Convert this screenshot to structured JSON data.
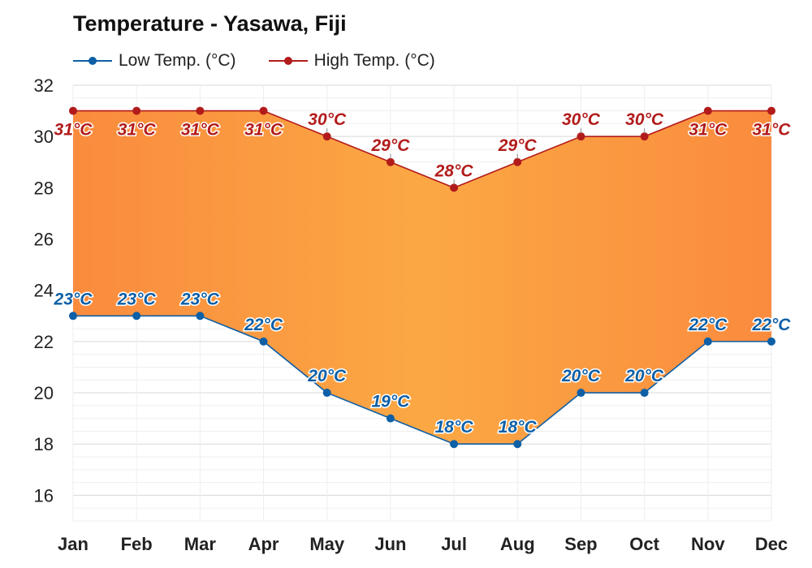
{
  "chart_data": {
    "type": "line",
    "title": "Temperature - Yasawa, Fiji",
    "categories": [
      "Jan",
      "Feb",
      "Mar",
      "Apr",
      "May",
      "Jun",
      "Jul",
      "Aug",
      "Sep",
      "Oct",
      "Nov",
      "Dec"
    ],
    "series": [
      {
        "name": "Low Temp. (°C)",
        "color": "#0d5fa6",
        "values": [
          23,
          23,
          23,
          22,
          20,
          19,
          18,
          18,
          20,
          20,
          22,
          22
        ],
        "labels": [
          "23°C",
          "23°C",
          "23°C",
          "22°C",
          "20°C",
          "19°C",
          "18°C",
          "18°C",
          "20°C",
          "20°C",
          "22°C",
          "22°C"
        ]
      },
      {
        "name": "High Temp. (°C)",
        "color": "#b21b1b",
        "values": [
          31,
          31,
          31,
          31,
          30,
          29,
          28,
          29,
          30,
          30,
          31,
          31
        ],
        "labels": [
          "31°C",
          "31°C",
          "31°C",
          "31°C",
          "30°C",
          "29°C",
          "28°C",
          "29°C",
          "30°C",
          "30°C",
          "31°C",
          "31°C"
        ]
      }
    ],
    "fill_between": {
      "colors": [
        "#fba844",
        "#fa8b3e"
      ]
    },
    "ylim": [
      15,
      32
    ],
    "yticks": [
      "16",
      "18",
      "20",
      "22",
      "24",
      "26",
      "28",
      "30",
      "32"
    ],
    "grid": true,
    "legend": "top-left"
  }
}
